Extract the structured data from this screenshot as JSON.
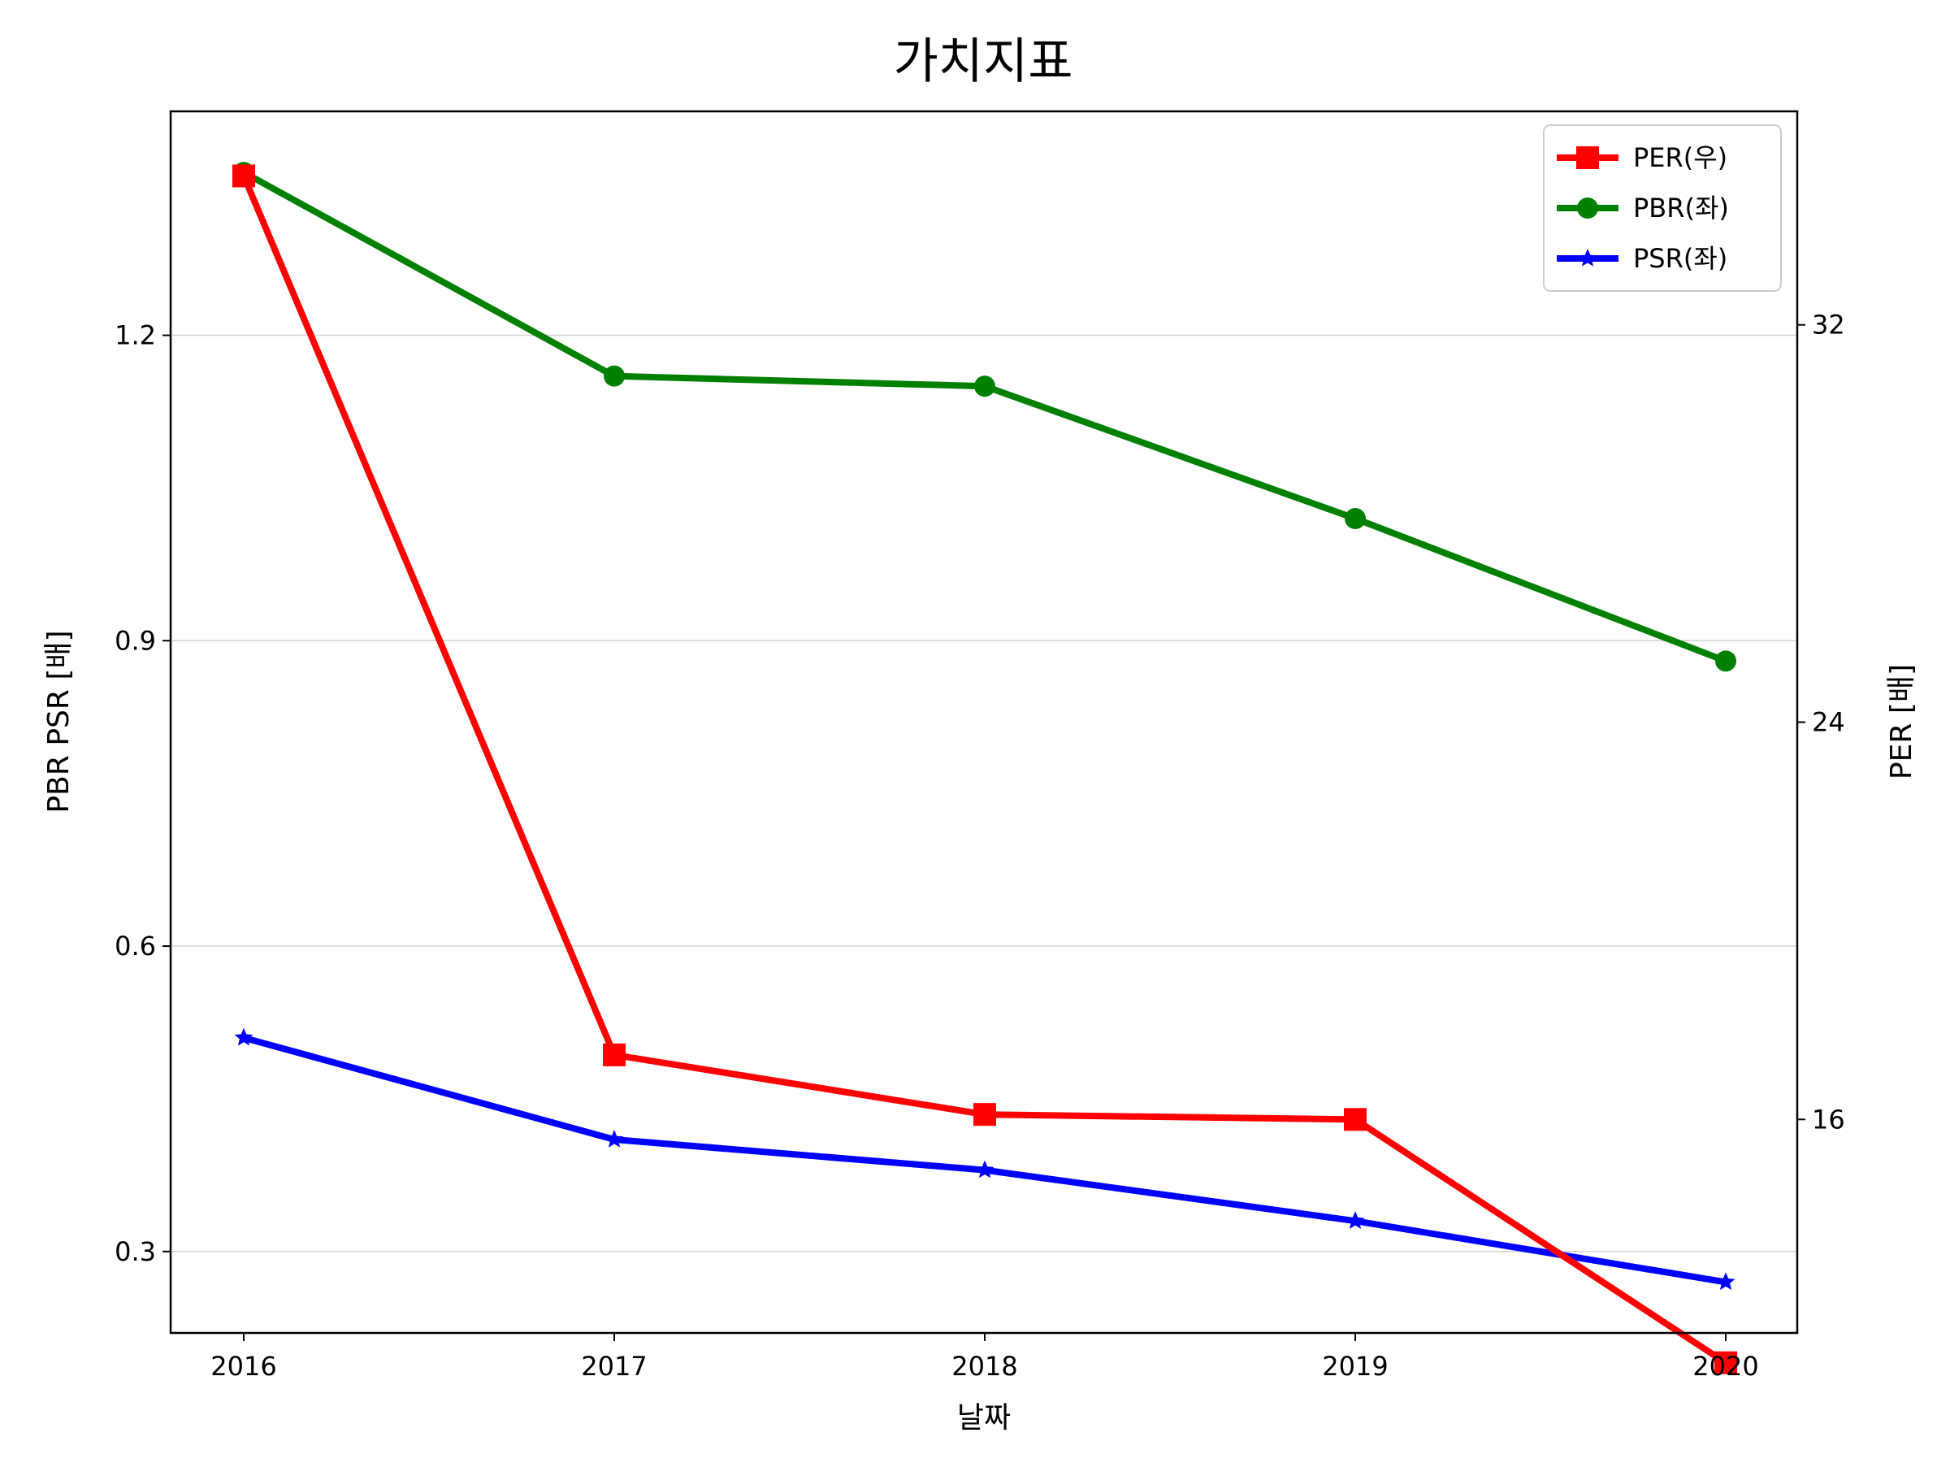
{
  "chart_data": {
    "type": "line",
    "title": "가치지표",
    "xlabel": "날짜",
    "ylabel_left": "PBR PSR [배]",
    "ylabel_right": "PER [배]",
    "x": [
      "2016",
      "2017",
      "2018",
      "2019",
      "2020"
    ],
    "y_left_ticks": [
      "0.3",
      "0.6",
      "0.9",
      "1.2"
    ],
    "y_right_ticks": [
      "16",
      "24",
      "32"
    ],
    "ylim_left": [
      0.22,
      1.42
    ],
    "ylim_right": [
      11.7,
      36.3
    ],
    "grid": "horizontal (left axis)",
    "legend": "top-right",
    "series": [
      {
        "name": "PER(우)",
        "axis": "right",
        "color": "#ff0000",
        "marker": "square",
        "values": [
          35.0,
          17.3,
          16.1,
          16.0,
          11.1
        ]
      },
      {
        "name": "PBR(좌)",
        "axis": "left",
        "color": "#008000",
        "marker": "circle",
        "values": [
          1.36,
          1.16,
          1.15,
          1.02,
          0.88
        ]
      },
      {
        "name": "PSR(좌)",
        "axis": "left",
        "color": "#0000ff",
        "marker": "star",
        "values": [
          0.51,
          0.41,
          0.38,
          0.33,
          0.27
        ]
      }
    ],
    "axis_label_colors": {
      "left": "#008000",
      "right": "#ff0000"
    }
  }
}
